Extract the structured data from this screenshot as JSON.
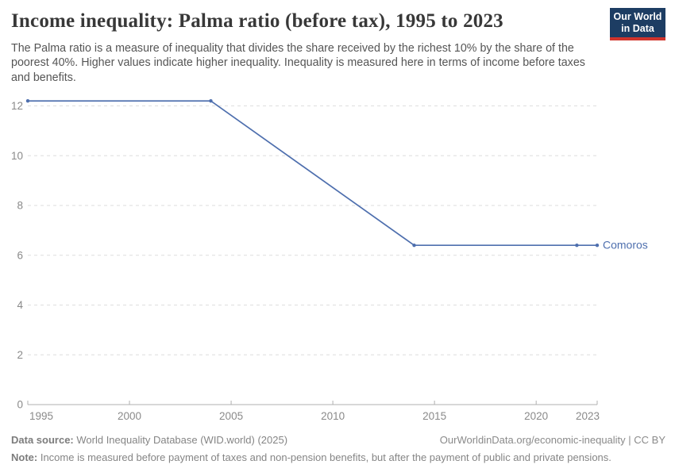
{
  "header": {
    "title": "Income inequality: Palma ratio (before tax), 1995 to 2023",
    "subtitle": "The Palma ratio is a measure of inequality that divides the share received by the richest 10% by the share of the poorest 40%. Higher values indicate higher inequality. Inequality is measured here in terms of income before taxes and benefits."
  },
  "logo": {
    "line1": "Our World",
    "line2": "in Data"
  },
  "chart_data": {
    "type": "line",
    "title": "Income inequality: Palma ratio (before tax), 1995 to 2023",
    "xlabel": "",
    "ylabel": "",
    "xlim": [
      1995,
      2023
    ],
    "ylim": [
      0,
      12
    ],
    "x_ticks": [
      1995,
      2000,
      2005,
      2010,
      2015,
      2020,
      2023
    ],
    "y_ticks": [
      0,
      2,
      4,
      6,
      8,
      10,
      12
    ],
    "grid": "horizontal-dashed",
    "legend_position": "end-of-line-label",
    "series": [
      {
        "name": "Comoros",
        "points": [
          {
            "x": 1995,
            "y": 12.2
          },
          {
            "x": 2004,
            "y": 12.2
          },
          {
            "x": 2014,
            "y": 6.4
          },
          {
            "x": 2022,
            "y": 6.4
          },
          {
            "x": 2023,
            "y": 6.4
          }
        ]
      }
    ]
  },
  "colors": {
    "line": "#4e6fae",
    "grid": "#dedede",
    "axis": "#b0b0b0",
    "tick_label": "#8a8a8a",
    "logo_bg": "#1d3d63",
    "logo_accent": "#d0342c"
  },
  "footer": {
    "datasource_label": "Data source:",
    "datasource_value": "World Inequality Database (WID.world) (2025)",
    "link": "OurWorldinData.org/economic-inequality | CC BY",
    "note_label": "Note:",
    "note_value": "Income is measured before payment of taxes and non-pension benefits, but after the payment of public and private pensions."
  }
}
